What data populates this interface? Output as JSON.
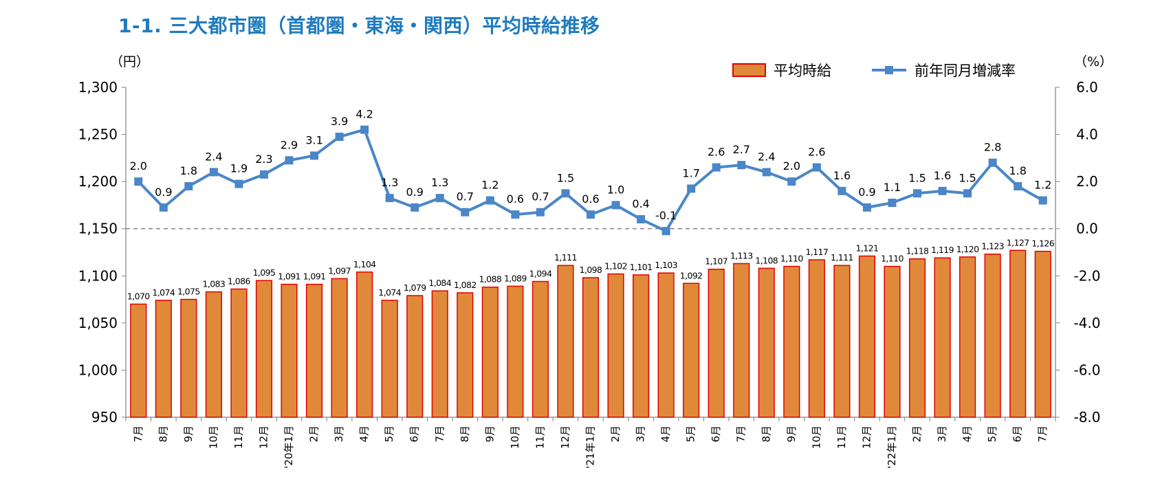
{
  "title": "1-1. 三大都市圏（首都圏・東海・関西）平均時給推移",
  "colors": {
    "title": "#1e7bbf",
    "bar_fill": "#e0893a",
    "bar_stroke": "#e00000",
    "line": "#4a86c8",
    "axis": "#7f7f7f",
    "zero_line": "#7f7f7f"
  },
  "chart_data": {
    "type": "bar",
    "left_axis_unit": "（円）",
    "right_axis_unit": "（%）",
    "ylim": [
      950,
      1300
    ],
    "y2lim": [
      -8.0,
      6.0
    ],
    "left_ticks": [
      "1,300",
      "1,250",
      "1,200",
      "1,150",
      "1,100",
      "1,050",
      "1,000",
      "950"
    ],
    "left_tick_values": [
      1300,
      1250,
      1200,
      1150,
      1100,
      1050,
      1000,
      950
    ],
    "right_ticks": [
      "6.0",
      "4.0",
      "2.0",
      "0.0",
      "-2.0",
      "-4.0",
      "-6.0",
      "-8.0"
    ],
    "right_tick_values": [
      6,
      4,
      2,
      0,
      -2,
      -4,
      -6,
      -8
    ],
    "grid": false,
    "legend_position": "top-right",
    "categories": [
      "7月",
      "8月",
      "9月",
      "10月",
      "11月",
      "12月",
      "'20年1月",
      "2月",
      "3月",
      "4月",
      "5月",
      "6月",
      "7月",
      "8月",
      "9月",
      "10月",
      "11月",
      "12月",
      "'21年1月",
      "2月",
      "3月",
      "4月",
      "5月",
      "6月",
      "7月",
      "8月",
      "9月",
      "10月",
      "11月",
      "12月",
      "'22年1月",
      "2月",
      "3月",
      "4月",
      "5月",
      "6月",
      "7月"
    ],
    "series": [
      {
        "name": "平均時給",
        "type": "bar",
        "axis": "left",
        "values": [
          1070,
          1074,
          1075,
          1083,
          1086,
          1095,
          1091,
          1091,
          1097,
          1104,
          1074,
          1079,
          1084,
          1082,
          1088,
          1089,
          1094,
          1111,
          1098,
          1102,
          1101,
          1103,
          1092,
          1107,
          1113,
          1108,
          1110,
          1117,
          1111,
          1121,
          1110,
          1118,
          1119,
          1120,
          1123,
          1127,
          1126
        ],
        "labels": [
          "1,070",
          "1,074",
          "1,075",
          "1,083",
          "1,086",
          "1,095",
          "1,091",
          "1,091",
          "1,097",
          "1,104",
          "1,074",
          "1,079",
          "1,084",
          "1,082",
          "1,088",
          "1,089",
          "1,094",
          "1,111",
          "1,098",
          "1,102",
          "1,101",
          "1,103",
          "1,092",
          "1,107",
          "1,113",
          "1,108",
          "1,110",
          "1,117",
          "1,111",
          "1,121",
          "1,110",
          "1,118",
          "1,119",
          "1,120",
          "1,123",
          "1,127",
          "1,126"
        ]
      },
      {
        "name": "前年同月増減率",
        "type": "line",
        "axis": "right",
        "values": [
          2.0,
          0.9,
          1.8,
          2.4,
          1.9,
          2.3,
          2.9,
          3.1,
          3.9,
          4.2,
          1.3,
          0.9,
          1.3,
          0.7,
          1.2,
          0.6,
          0.7,
          1.5,
          0.6,
          1.0,
          0.4,
          -0.1,
          1.7,
          2.6,
          2.7,
          2.4,
          2.0,
          2.6,
          1.6,
          0.9,
          1.1,
          1.5,
          1.6,
          1.5,
          2.8,
          1.8,
          1.2
        ],
        "labels": [
          "2.0",
          "0.9",
          "1.8",
          "2.4",
          "1.9",
          "2.3",
          "2.9",
          "3.1",
          "3.9",
          "4.2",
          "1.3",
          "0.9",
          "1.3",
          "0.7",
          "1.2",
          "0.6",
          "0.7",
          "1.5",
          "0.6",
          "1.0",
          "0.4",
          "-0.1",
          "1.7",
          "2.6",
          "2.7",
          "2.4",
          "2.0",
          "2.6",
          "1.6",
          "0.9",
          "1.1",
          "1.5",
          "1.6",
          "1.5",
          "2.8",
          "1.8",
          "1.2"
        ]
      }
    ]
  }
}
